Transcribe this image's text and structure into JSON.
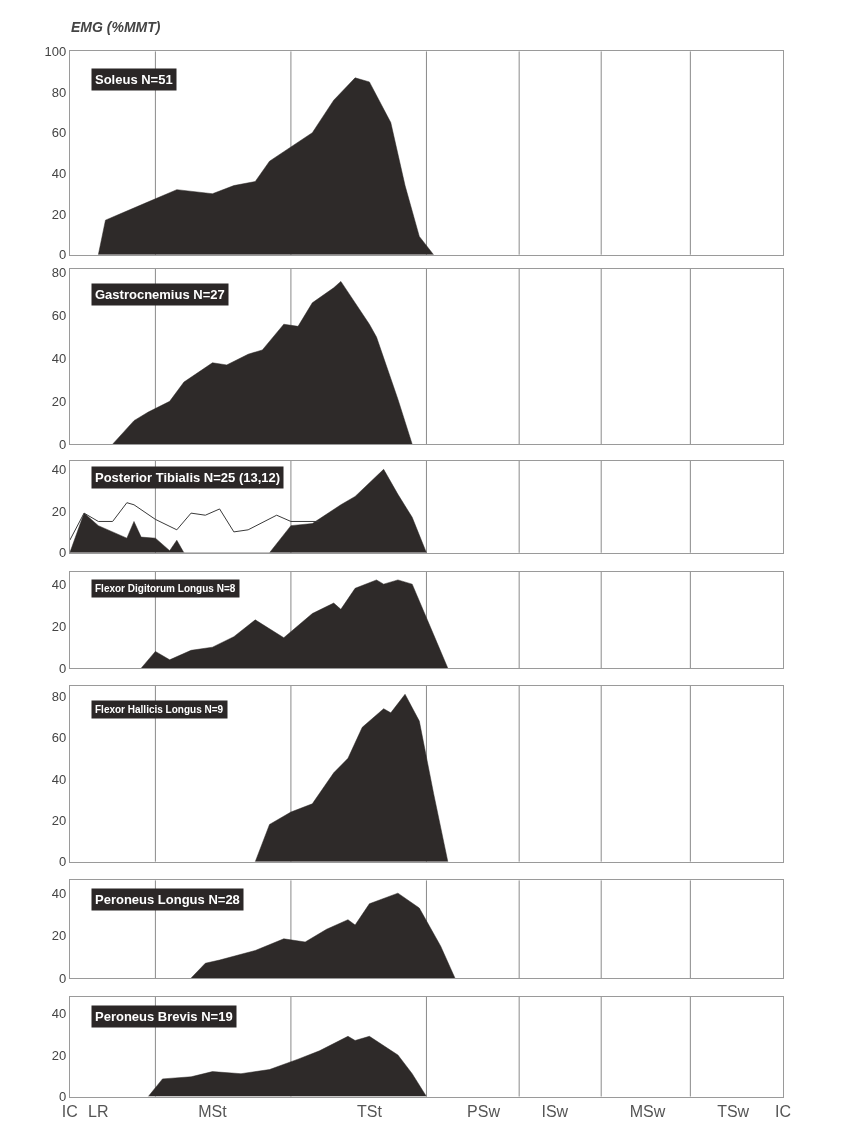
{
  "chart_data": [
    {
      "type": "area",
      "title": "Soleus N=51",
      "ylabel": "EMG (%MMT)",
      "ylim": [
        0,
        100
      ],
      "yticks": [
        0,
        20,
        40,
        60,
        80,
        100
      ],
      "grid": "x",
      "tick_labels": "y",
      "categories": [
        null,
        null,
        null,
        null,
        null,
        null,
        null,
        null,
        null,
        null,
        null,
        null,
        null,
        null,
        null,
        null,
        null,
        null,
        null,
        null,
        null,
        null,
        null,
        null,
        null,
        null,
        null,
        null,
        null,
        null,
        null,
        null,
        null,
        null,
        null,
        null,
        null,
        null,
        null,
        null,
        null,
        null,
        null,
        null,
        null,
        null,
        null,
        null,
        null,
        null,
        null,
        null,
        null,
        null,
        null,
        null,
        null,
        null,
        null,
        null,
        null,
        null,
        null,
        null,
        null,
        null,
        null,
        null,
        null,
        null,
        null,
        null,
        null,
        null,
        null,
        null,
        null,
        null,
        null,
        null,
        null,
        null,
        null,
        null,
        null,
        null,
        null,
        null,
        null,
        null,
        null,
        null,
        null,
        null,
        null,
        null,
        null,
        null,
        null,
        null,
        null
      ],
      "series": [
        {
          "color": "#2e2a29",
          "values": [
            null,
            null,
            null,
            null,
            0,
            17,
            null,
            20,
            null,
            null,
            null,
            26,
            null,
            null,
            null,
            32,
            null,
            null,
            null,
            null,
            30,
            null,
            null,
            34,
            null,
            null,
            36,
            null,
            46,
            null,
            null,
            53,
            null,
            null,
            60,
            null,
            null,
            76,
            null,
            null,
            87,
            null,
            85,
            null,
            null,
            65,
            null,
            34,
            null,
            9,
            null,
            0,
            null,
            null,
            null,
            null,
            null,
            null,
            null,
            null,
            null,
            null,
            null,
            null,
            null,
            null,
            null,
            null,
            null,
            null,
            null,
            null,
            null,
            null,
            null,
            null,
            null,
            null,
            null,
            null,
            null,
            null,
            null,
            null,
            null,
            null,
            null,
            null,
            null,
            null,
            null,
            null,
            null,
            null,
            null,
            null,
            null,
            null,
            null,
            null,
            null
          ]
        }
      ]
    },
    {
      "type": "area",
      "title": "Gastrocnemius N=27",
      "ylim": [
        0,
        82
      ],
      "yticks": [
        0,
        20,
        40,
        60,
        80
      ],
      "grid": "x",
      "tick_labels": "y",
      "categories": [
        null,
        null,
        null,
        null,
        null,
        null,
        null,
        null,
        null,
        null,
        null,
        null,
        null,
        null,
        null,
        null,
        null,
        null,
        null,
        null,
        null,
        null,
        null,
        null,
        null,
        null,
        null,
        null,
        null,
        null,
        null,
        null,
        null,
        null,
        null,
        null,
        null,
        null,
        null,
        null,
        null,
        null,
        null,
        null,
        null,
        null,
        null,
        null,
        null,
        null,
        null,
        null,
        null,
        null,
        null,
        null,
        null,
        null,
        null,
        null,
        null,
        null,
        null,
        null,
        null,
        null,
        null,
        null,
        null,
        null,
        null,
        null,
        null,
        null,
        null,
        null,
        null,
        null,
        null,
        null,
        null,
        null,
        null,
        null,
        null,
        null,
        null,
        null,
        null,
        null,
        null,
        null,
        null,
        null,
        null,
        null,
        null,
        null,
        null,
        null,
        null
      ],
      "series": [
        {
          "color": "#2e2a29",
          "values": [
            null,
            null,
            null,
            null,
            null,
            null,
            0,
            null,
            null,
            11,
            null,
            15,
            null,
            null,
            20,
            null,
            29,
            null,
            null,
            null,
            38,
            null,
            37,
            null,
            null,
            42,
            null,
            44,
            null,
            null,
            56,
            null,
            55,
            null,
            66,
            null,
            null,
            73,
            76,
            null,
            null,
            null,
            56,
            50,
            null,
            null,
            21,
            null,
            0,
            null,
            null,
            null,
            null,
            null,
            null,
            null,
            null,
            null,
            null,
            null,
            null,
            null,
            null,
            null,
            null,
            null,
            null,
            null,
            null,
            null,
            null,
            null,
            null,
            null,
            null,
            null,
            null,
            null,
            null,
            null,
            null,
            null,
            null,
            null,
            null,
            null,
            null,
            null,
            null,
            null,
            null,
            null,
            null,
            null,
            null,
            null,
            null,
            null,
            null,
            null,
            null
          ]
        }
      ]
    },
    {
      "type": "area",
      "title": "Posterior Tibialis N=25 (13,12)",
      "ylim": [
        0,
        44
      ],
      "yticks": [
        0,
        20,
        40
      ],
      "grid": "x",
      "tick_labels": "y",
      "categories": [
        null,
        null,
        null,
        null,
        null,
        null,
        null,
        null,
        null,
        null,
        null,
        null,
        null,
        null,
        null,
        null,
        null,
        null,
        null,
        null,
        null,
        null,
        null,
        null,
        null,
        null,
        null,
        null,
        null,
        null,
        null,
        null,
        null,
        null,
        null,
        null,
        null,
        null,
        null,
        null,
        null,
        null,
        null,
        null,
        null,
        null,
        null,
        null,
        null,
        null,
        null,
        null,
        null,
        null,
        null,
        null,
        null,
        null,
        null,
        null,
        null,
        null,
        null,
        null,
        null,
        null,
        null,
        null,
        null,
        null,
        null,
        null,
        null,
        null,
        null,
        null,
        null,
        null,
        null,
        null,
        null,
        null,
        null,
        null,
        null,
        null,
        null,
        null,
        null,
        null,
        null,
        null,
        null,
        null,
        null,
        null,
        null,
        null,
        null,
        null,
        null
      ],
      "series": [
        {
          "color": "#2e2a29",
          "values": [
            0,
            null,
            19,
            null,
            13,
            null,
            null,
            null,
            7,
            15,
            7.5,
            null,
            7,
            null,
            1,
            6,
            0,
            null,
            null,
            null,
            null,
            null,
            null,
            null,
            null,
            null,
            null,
            null,
            0,
            null,
            null,
            13,
            null,
            null,
            14,
            null,
            null,
            null,
            23,
            null,
            27,
            null,
            null,
            null,
            40,
            null,
            28,
            null,
            17,
            null,
            0,
            null,
            null,
            null,
            null,
            null,
            null,
            null,
            null,
            null,
            null,
            null,
            null,
            null,
            null,
            null,
            null,
            null,
            null,
            null,
            null,
            null,
            null,
            null,
            null,
            null,
            null,
            null,
            null,
            null,
            null,
            null,
            null,
            null,
            null,
            null,
            null,
            null,
            null,
            null,
            null,
            null,
            null,
            null,
            null,
            null,
            null,
            null,
            null,
            null,
            null
          ]
        },
        {
          "type": "line",
          "color": "#3a3a3a",
          "values": [
            6,
            null,
            19,
            null,
            15,
            null,
            15,
            null,
            24,
            23,
            null,
            null,
            16,
            null,
            null,
            11,
            null,
            19,
            null,
            18,
            null,
            21,
            null,
            10,
            null,
            11,
            null,
            null,
            null,
            18,
            null,
            15,
            null,
            null,
            null,
            15,
            null,
            null,
            null,
            null,
            null,
            null,
            null,
            null,
            null,
            null,
            null,
            null,
            null,
            null,
            null,
            null,
            null,
            null,
            null,
            null,
            null,
            null,
            null,
            null,
            null,
            null,
            null,
            null,
            null,
            null,
            null,
            null,
            null,
            null,
            null,
            null,
            null,
            null,
            null,
            null,
            null,
            null,
            null,
            null,
            null,
            null,
            null,
            null,
            null,
            null,
            null,
            null,
            null,
            null,
            null,
            null,
            null,
            null,
            null,
            null,
            null,
            null,
            null,
            null,
            null
          ]
        }
      ]
    },
    {
      "type": "area",
      "title": "Flexor Digitorum Longus N=8",
      "ylim": [
        0,
        46
      ],
      "yticks": [
        0,
        20,
        40
      ],
      "grid": "x",
      "tick_labels": "y",
      "categories": [
        null,
        null,
        null,
        null,
        null,
        null,
        null,
        null,
        null,
        null,
        null,
        null,
        null,
        null,
        null,
        null,
        null,
        null,
        null,
        null,
        null,
        null,
        null,
        null,
        null,
        null,
        null,
        null,
        null,
        null,
        null,
        null,
        null,
        null,
        null,
        null,
        null,
        null,
        null,
        null,
        null,
        null,
        null,
        null,
        null,
        null,
        null,
        null,
        null,
        null,
        null,
        null,
        null,
        null,
        null,
        null,
        null,
        null,
        null,
        null,
        null,
        null,
        null,
        null,
        null,
        null,
        null,
        null,
        null,
        null,
        null,
        null,
        null,
        null,
        null,
        null,
        null,
        null,
        null,
        null,
        null,
        null,
        null,
        null,
        null,
        null,
        null,
        null,
        null,
        null,
        null,
        null,
        null,
        null,
        null,
        null,
        null,
        null,
        null,
        null,
        null
      ],
      "series": [
        {
          "color": "#2e2a29",
          "values": [
            null,
            null,
            null,
            null,
            null,
            null,
            null,
            null,
            null,
            null,
            0,
            null,
            8,
            null,
            4,
            null,
            null,
            8.5,
            null,
            null,
            10,
            null,
            null,
            15,
            null,
            null,
            23,
            null,
            null,
            null,
            14.5,
            null,
            null,
            null,
            26,
            null,
            null,
            31,
            28,
            null,
            38,
            null,
            null,
            42,
            40,
            null,
            42,
            null,
            40,
            null,
            null,
            16,
            null,
            0,
            null,
            null,
            null,
            null,
            null,
            null,
            null,
            null,
            null,
            null,
            null,
            null,
            null,
            null,
            null,
            null,
            null,
            null,
            null,
            null,
            null,
            null,
            null,
            null,
            null,
            null,
            null,
            null,
            null,
            null,
            null,
            null,
            null,
            null,
            null,
            null,
            null,
            null,
            null,
            null,
            null,
            null,
            null,
            null,
            null,
            null,
            null
          ]
        }
      ]
    },
    {
      "type": "area",
      "title": "Flexor Hallicis Longus N=9",
      "ylim": [
        0,
        85
      ],
      "yticks": [
        0,
        20,
        40,
        60,
        80
      ],
      "grid": "x",
      "tick_labels": "y",
      "categories": [
        null,
        null,
        null,
        null,
        null,
        null,
        null,
        null,
        null,
        null,
        null,
        null,
        null,
        null,
        null,
        null,
        null,
        null,
        null,
        null,
        null,
        null,
        null,
        null,
        null,
        null,
        null,
        null,
        null,
        null,
        null,
        null,
        null,
        null,
        null,
        null,
        null,
        null,
        null,
        null,
        null,
        null,
        null,
        null,
        null,
        null,
        null,
        null,
        null,
        null,
        null,
        null,
        null,
        null,
        null,
        null,
        null,
        null,
        null,
        null,
        null,
        null,
        null,
        null,
        null,
        null,
        null,
        null,
        null,
        null,
        null,
        null,
        null,
        null,
        null,
        null,
        null,
        null,
        null,
        null,
        null,
        null,
        null,
        null,
        null,
        null,
        null,
        null,
        null,
        null,
        null,
        null,
        null,
        null,
        null,
        null,
        null,
        null,
        null,
        null,
        null
      ],
      "series": [
        {
          "color": "#2e2a29",
          "values": [
            null,
            null,
            null,
            null,
            null,
            null,
            null,
            null,
            null,
            null,
            null,
            null,
            null,
            null,
            null,
            null,
            null,
            null,
            null,
            null,
            null,
            null,
            null,
            null,
            null,
            null,
            0,
            null,
            18,
            null,
            null,
            24,
            null,
            null,
            28,
            null,
            null,
            43,
            null,
            50,
            null,
            65,
            null,
            null,
            74,
            72,
            null,
            81,
            null,
            68,
            null,
            33,
            null,
            0,
            null,
            null,
            null,
            null,
            null,
            null,
            null,
            null,
            null,
            null,
            null,
            null,
            null,
            null,
            null,
            null,
            null,
            null,
            null,
            null,
            null,
            null,
            null,
            null,
            null,
            null,
            null,
            null,
            null,
            null,
            null,
            null,
            null,
            null,
            null,
            null,
            null,
            null,
            null,
            null,
            null,
            null,
            null,
            null,
            null,
            null,
            null
          ]
        }
      ]
    },
    {
      "type": "area",
      "title": "Peroneus Longus N=28",
      "ylim": [
        0,
        46
      ],
      "yticks": [
        0,
        20,
        40
      ],
      "grid": "x",
      "tick_labels": "y",
      "categories": [
        null,
        null,
        null,
        null,
        null,
        null,
        null,
        null,
        null,
        null,
        null,
        null,
        null,
        null,
        null,
        null,
        null,
        null,
        null,
        null,
        null,
        null,
        null,
        null,
        null,
        null,
        null,
        null,
        null,
        null,
        null,
        null,
        null,
        null,
        null,
        null,
        null,
        null,
        null,
        null,
        null,
        null,
        null,
        null,
        null,
        null,
        null,
        null,
        null,
        null,
        null,
        null,
        null,
        null,
        null,
        null,
        null,
        null,
        null,
        null,
        null,
        null,
        null,
        null,
        null,
        null,
        null,
        null,
        null,
        null,
        null,
        null,
        null,
        null,
        null,
        null,
        null,
        null,
        null,
        null,
        null,
        null,
        null,
        null,
        null,
        null,
        null,
        null,
        null,
        null,
        null,
        null,
        null,
        null,
        null,
        null,
        null,
        null,
        null,
        null,
        null
      ],
      "series": [
        {
          "color": "#2e2a29",
          "values": [
            null,
            null,
            null,
            null,
            null,
            null,
            null,
            null,
            null,
            null,
            null,
            null,
            null,
            null,
            null,
            null,
            null,
            0,
            null,
            7,
            null,
            8.5,
            null,
            null,
            null,
            null,
            13,
            null,
            null,
            null,
            18.5,
            null,
            null,
            17,
            null,
            null,
            23,
            null,
            null,
            27.5,
            25,
            null,
            35,
            null,
            null,
            null,
            40,
            null,
            null,
            33,
            null,
            null,
            15,
            null,
            0,
            null,
            null,
            null,
            null,
            null,
            null,
            null,
            null,
            null,
            null,
            null,
            null,
            null,
            null,
            null,
            null,
            null,
            null,
            null,
            null,
            null,
            null,
            null,
            null,
            null,
            null,
            null,
            null,
            null,
            null,
            null,
            null,
            null,
            null,
            null,
            null,
            null,
            null,
            null,
            null,
            null,
            null,
            null,
            null,
            null,
            null
          ]
        }
      ]
    },
    {
      "type": "area",
      "title": "Peroneus Brevis N=19",
      "ylim": [
        0,
        48
      ],
      "yticks": [
        0,
        20,
        40
      ],
      "grid": "x",
      "categories": [
        "IC",
        null,
        null,
        null,
        "LR",
        null,
        null,
        null,
        null,
        null,
        null,
        null,
        null,
        null,
        null,
        null,
        null,
        null,
        null,
        null,
        "MSt",
        null,
        null,
        null,
        null,
        null,
        null,
        null,
        null,
        null,
        null,
        null,
        null,
        null,
        null,
        null,
        null,
        null,
        null,
        null,
        null,
        null,
        "TSt",
        null,
        null,
        null,
        null,
        null,
        null,
        null,
        null,
        null,
        null,
        null,
        null,
        null,
        null,
        null,
        "PSw",
        null,
        null,
        null,
        null,
        null,
        null,
        null,
        null,
        null,
        "ISw",
        null,
        null,
        null,
        null,
        null,
        null,
        null,
        null,
        null,
        null,
        null,
        null,
        "MSw",
        null,
        null,
        null,
        null,
        null,
        null,
        null,
        null,
        null,
        null,
        null,
        "TSw",
        null,
        null,
        null,
        null,
        null,
        null,
        "IC"
      ],
      "series": [
        {
          "color": "#2e2a29",
          "values": [
            null,
            null,
            null,
            null,
            null,
            null,
            null,
            null,
            null,
            null,
            null,
            0,
            null,
            8.5,
            null,
            null,
            null,
            9.5,
            null,
            null,
            12,
            null,
            null,
            null,
            11,
            null,
            null,
            null,
            13,
            null,
            null,
            null,
            18,
            null,
            null,
            22,
            null,
            null,
            null,
            29,
            27,
            null,
            29,
            null,
            null,
            null,
            20,
            null,
            11,
            null,
            0,
            null,
            null,
            null,
            null,
            null,
            null,
            null,
            null,
            null,
            null,
            null,
            null,
            null,
            null,
            null,
            null,
            null,
            null,
            null,
            null,
            null,
            null,
            null,
            null,
            null,
            null,
            null,
            null,
            null,
            null,
            null,
            null,
            null,
            null,
            null,
            null,
            null,
            null,
            null,
            null,
            null,
            null,
            null,
            null,
            null,
            null,
            null,
            null,
            null,
            null
          ]
        }
      ]
    }
  ]
}
